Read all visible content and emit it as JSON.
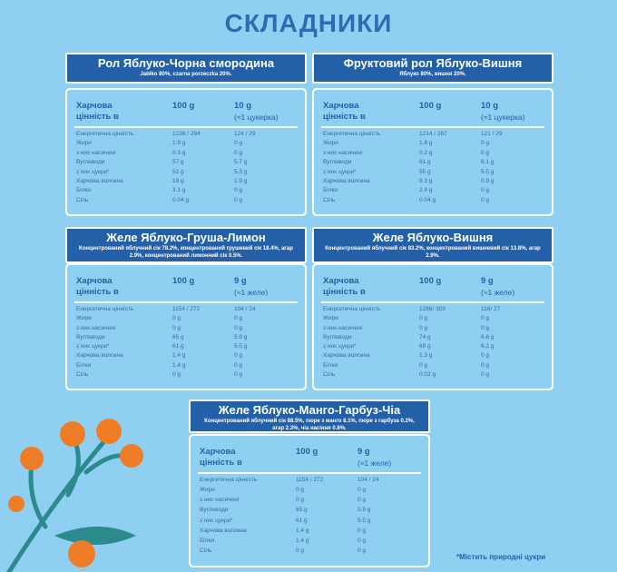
{
  "title": "СКЛАДНИКИ",
  "footnote": "*Містить природні цукри",
  "panels": [
    {
      "title": "Рол Яблуко-Чорна смородина",
      "subtitle": "Jabłko 80%, czarna porzeczka 20%.",
      "table": {
        "header": [
          "Харчова цінність в",
          "100 g",
          "10 g",
          "(≈1 цукерка)"
        ],
        "rows": [
          [
            "Енергетична цінність",
            "1238 / 294",
            "124 / 29"
          ],
          [
            "Жири",
            "1.9 g",
            "0 g"
          ],
          [
            "з них насичені",
            "0.3 g",
            "0 g"
          ],
          [
            "Вуглеводи",
            "57 g",
            "5.7 g"
          ],
          [
            "з них цукри*",
            "52 g",
            "5.3 g"
          ],
          [
            "Харчова волокна",
            "19 g",
            "1.9 g"
          ],
          [
            "Білки",
            "3.1 g",
            "0 g"
          ],
          [
            "Сіль",
            "0.04 g",
            "0 g"
          ]
        ]
      }
    },
    {
      "title": "Фруктовий рол Яблуко-Вишня",
      "subtitle": "Яблуко 80%, вишня 20%.",
      "table": {
        "header": [
          "Харчова цінність в",
          "100 g",
          "10 g",
          "(≈1 цукерка)"
        ],
        "rows": [
          [
            "Енергетична цінність",
            "1214 / 287",
            "121 / 29"
          ],
          [
            "Жири",
            "1.8 g",
            "0 g"
          ],
          [
            "з них насичені",
            "0.2 g",
            "0 g"
          ],
          [
            "Вуглеводи",
            "61 g",
            "6.1 g"
          ],
          [
            "з них цукри*",
            "55 g",
            "5.5 g"
          ],
          [
            "Харчова волокна",
            "9.3 g",
            "0.9 g"
          ],
          [
            "Білки",
            "2.4 g",
            "0 g"
          ],
          [
            "Сіль",
            "0.04 g",
            "0 g"
          ]
        ]
      }
    },
    {
      "title": "Желе Яблуко-Груша-Лимон",
      "subtitle": "Концентрований яблучний сік 78.2%, концентрований грушевий сік 18.4%, агар 2.9%, концентрований лимонний сік 0.5%.",
      "table": {
        "header": [
          "Харчова цінність в",
          "100 g",
          "9 g",
          "(≈1 желе)"
        ],
        "rows": [
          [
            "Енергетична цінність",
            "1154 / 272",
            "104 / 24"
          ],
          [
            "Жири",
            "0 g",
            "0 g"
          ],
          [
            "з них насичені",
            "0 g",
            "0 g"
          ],
          [
            "Вуглеводи",
            "65 g",
            "5.9 g"
          ],
          [
            "з них цукри*",
            "61 g",
            "5.5 g"
          ],
          [
            "Харчова волокна",
            "1.4 g",
            "0 g"
          ],
          [
            "Білки",
            "1.4 g",
            "0 g"
          ],
          [
            "Сіль",
            "0 g",
            "0 g"
          ]
        ]
      }
    },
    {
      "title": "Желе Яблуко-Вишня",
      "subtitle": "Концентрований яблучний сік 83.2%, концентрований вишневий сік 13.8%, агар 2.9%.",
      "table": {
        "header": [
          "Харчова цінність в",
          "100 g",
          "9 g",
          "(≈1 желе)"
        ],
        "rows": [
          [
            "Енергетична цінність",
            "1286/ 303",
            "116/ 27"
          ],
          [
            "Жири",
            "0 g",
            "0 g"
          ],
          [
            "з них насичені",
            "0 g",
            "0 g"
          ],
          [
            "Вуглеводи",
            "74 g",
            "6.6 g"
          ],
          [
            "з них цукри*",
            "69 g",
            "6.2 g"
          ],
          [
            "Харчова волокна",
            "1.3 g",
            "0 g"
          ],
          [
            "Білки",
            "0 g",
            "0 g"
          ],
          [
            "Сіль",
            "0.02 g",
            "0 g"
          ]
        ]
      }
    },
    {
      "title": "Желе Яблуко-Манго-Гарбуз-Чіа",
      "subtitle": "Концентрований яблучний сік 88.5%, пюре з манго 8.1%, пюре з гарбуза 0.2%, агар 2.3%, чіа насіння 0.8%.",
      "table": {
        "header": [
          "Харчова цінність в",
          "100 g",
          "9 g",
          "(≈1 желе)"
        ],
        "rows": [
          [
            "Енергетична цінність",
            "1154 / 272",
            "104 / 24"
          ],
          [
            "Жири",
            "0 g",
            "0 g"
          ],
          [
            "з них насичені",
            "0 g",
            "0 g"
          ],
          [
            "Вуглеводи",
            "65 g",
            "5.9 g"
          ],
          [
            "з них цукри*",
            "61 g",
            "5.5 g"
          ],
          [
            "Харчова волокна",
            "1.4 g",
            "0 g"
          ],
          [
            "Білки",
            "1.4 g",
            "0 g"
          ],
          [
            "Сіль",
            "0 g",
            "0 g"
          ]
        ]
      }
    }
  ]
}
